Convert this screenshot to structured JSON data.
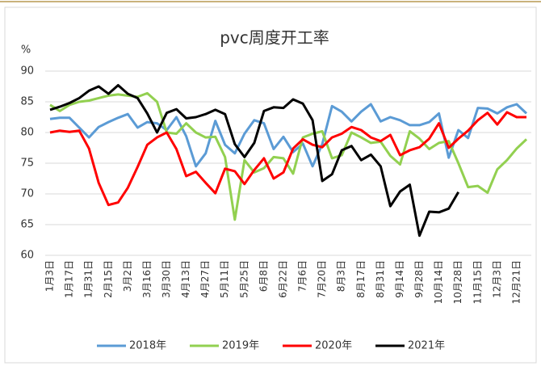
{
  "chart_data": {
    "type": "line",
    "title": "pvc周度开工率",
    "y_label": "%",
    "categories": [
      "1月3日",
      null,
      "1月17日",
      null,
      "1月31日",
      null,
      "2月15日",
      null,
      "3月2日",
      null,
      "3月16日",
      null,
      "3月30日",
      null,
      "4月13日",
      null,
      "4月27日",
      null,
      "5月11日",
      null,
      "5月25日",
      null,
      "6月8日",
      null,
      "6月22日",
      null,
      "7月6日",
      null,
      "7月20日",
      null,
      "8月3日",
      null,
      "8月17日",
      null,
      "8月31日",
      null,
      "9月14日",
      null,
      "9月28日",
      null,
      "10月14日",
      null,
      "10月28日",
      null,
      "11月15日",
      null,
      "12月3日",
      null,
      "12月21日",
      null
    ],
    "series": [
      {
        "name": "2018年",
        "color": "#5b9bd5",
        "values": [
          82.2,
          82.4,
          82.4,
          80.8,
          79.2,
          80.9,
          81.7,
          82.4,
          83,
          80.8,
          81.7,
          81.5,
          80.4,
          82.5,
          79.4,
          74.5,
          76.6,
          81.9,
          78,
          76.6,
          79.8,
          82,
          81.5,
          77.3,
          79.3,
          76.8,
          78.2,
          74.5,
          78.1,
          84.3,
          83.4,
          81.8,
          83.4,
          84.6,
          81.8,
          82.5,
          82,
          81.2,
          81.2,
          81.7,
          83.1,
          75.9,
          80.4,
          79.1,
          84,
          83.9,
          83.1,
          84.1,
          84.6,
          83.1
        ]
      },
      {
        "name": "2019年",
        "color": "#92d050",
        "values": [
          84.5,
          83.5,
          84.5,
          85,
          85.2,
          85.6,
          86,
          86.2,
          86,
          85.8,
          86.4,
          85,
          80,
          79.8,
          81.5,
          80,
          79.2,
          79.3,
          76,
          65.8,
          75.5,
          73.5,
          74.2,
          76,
          75.8,
          73.3,
          79.2,
          79.8,
          80.2,
          75.8,
          76.3,
          80,
          79.2,
          78.3,
          78.5,
          76.2,
          74.8,
          80.2,
          79,
          77.3,
          78.3,
          78.6,
          75,
          71.1,
          71.3,
          70.2,
          74,
          75.5,
          77.4,
          78.9
        ]
      },
      {
        "name": "2020年",
        "color": "#ff0000",
        "values": [
          80,
          80.3,
          80.1,
          80.3,
          77.4,
          71.8,
          68.2,
          68.6,
          71,
          74.4,
          78,
          79.2,
          80,
          77.3,
          72.9,
          73.6,
          71.8,
          70.1,
          74.1,
          73.7,
          71.6,
          73.9,
          75.8,
          72.5,
          73.5,
          77.4,
          78.9,
          78,
          77.6,
          79.2,
          79.8,
          80.9,
          80.4,
          79.2,
          78.6,
          79.6,
          76.3,
          77.1,
          77.6,
          79,
          81.5,
          77.5,
          79,
          80.3,
          82,
          83.2,
          81.3,
          83.3,
          82.5,
          82.5
        ]
      },
      {
        "name": "2021年",
        "color": "#000000",
        "values": [
          83.7,
          84.2,
          84.8,
          85.6,
          86.8,
          87.5,
          86.3,
          87.7,
          86.3,
          85.6,
          83.1,
          80,
          83.2,
          83.8,
          82.3,
          82.5,
          83,
          83.7,
          83,
          78.1,
          76,
          78.3,
          83.5,
          84.1,
          84,
          85.4,
          84.7,
          82,
          72.1,
          73.2,
          77.1,
          77.8,
          75.5,
          76.4,
          74.5,
          68,
          70.4,
          71.5,
          63.2,
          67.1,
          67,
          67.6,
          70.3,
          null,
          null,
          null,
          null,
          null,
          null,
          null
        ]
      }
    ],
    "ylim": [
      60,
      90
    ],
    "yticks": [
      60,
      65,
      70,
      75,
      80,
      85,
      90
    ],
    "grid": true,
    "legend": "bottom"
  }
}
